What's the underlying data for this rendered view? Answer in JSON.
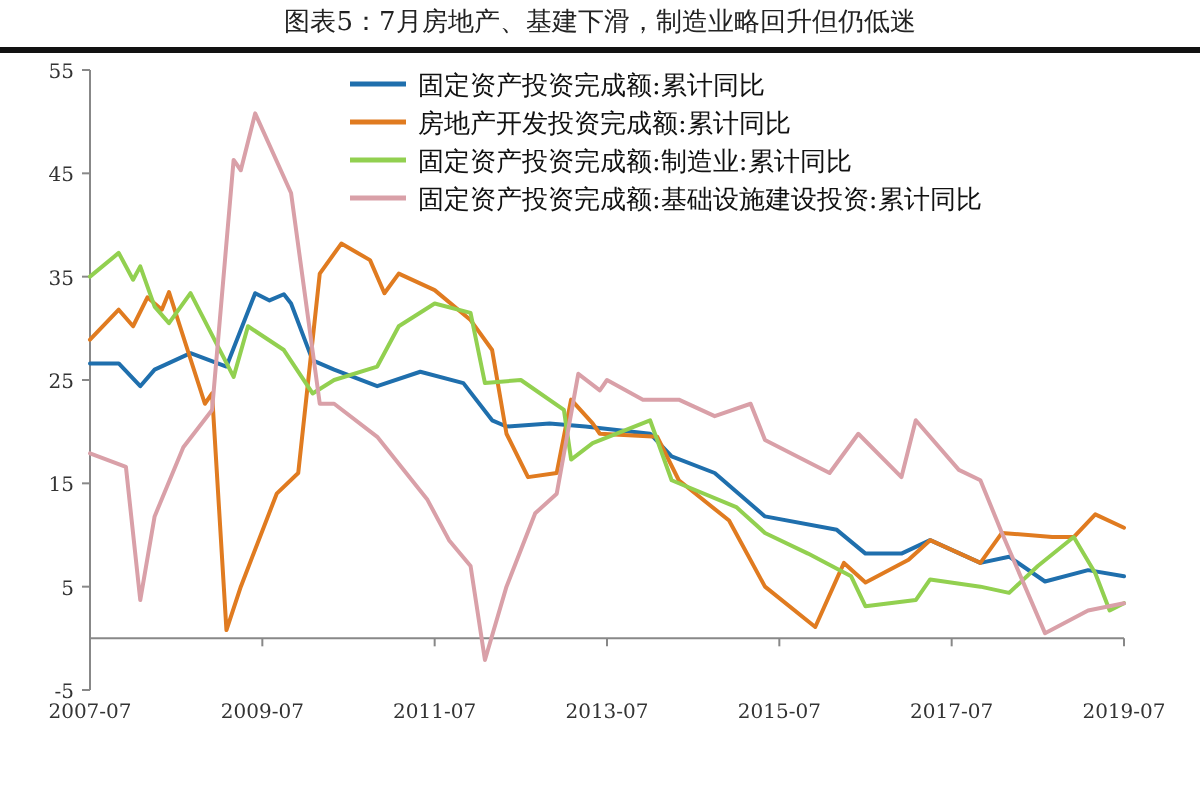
{
  "chart_data": {
    "type": "line",
    "title": "图表5：7月房地产、基建下滑，制造业略回升但仍低迷",
    "xlim": [
      "2007-07",
      "2019-07"
    ],
    "xticks": [
      "2007-07",
      "2009-07",
      "2011-07",
      "2013-07",
      "2015-07",
      "2017-07",
      "2019-07"
    ],
    "ylim": [
      -5,
      55
    ],
    "yticks": [
      -5,
      5,
      15,
      25,
      35,
      45,
      55
    ],
    "grid": false,
    "legend": "top right",
    "marker": "none",
    "line_style": "solid",
    "series": [
      {
        "name": "固定资产投资完成额:累计同比",
        "color": "#1f6fad",
        "x": [
          "2007-07",
          "2007-11",
          "2008-02",
          "2008-04",
          "2008-09",
          "2009-02",
          "2009-06",
          "2009-08",
          "2009-10",
          "2009-11",
          "2010-02",
          "2010-05",
          "2010-11",
          "2011-05",
          "2011-11",
          "2012-03",
          "2012-05",
          "2012-11",
          "2013-04",
          "2014-01",
          "2014-04",
          "2014-10",
          "2015-05",
          "2016-03",
          "2016-07",
          "2016-12",
          "2017-04",
          "2017-11",
          "2018-03",
          "2018-08",
          "2019-02",
          "2019-07"
        ],
        "values": [
          26.6,
          26.6,
          24.4,
          26,
          27.6,
          26.3,
          33.4,
          32.7,
          33.3,
          32.4,
          26.9,
          26,
          24.4,
          25.8,
          24.7,
          21.1,
          20.5,
          20.8,
          20.5,
          19.8,
          17.6,
          16,
          11.8,
          10.5,
          8.2,
          8.2,
          9.5,
          7.3,
          7.9,
          5.5,
          6.6,
          6.0
        ]
      },
      {
        "name": "房地产开发投资完成额:累计同比",
        "color": "#e07b20",
        "x": [
          "2007-07",
          "2007-11",
          "2008-01",
          "2008-03",
          "2008-05",
          "2008-06",
          "2008-11",
          "2008-12",
          "2009-02",
          "2009-04",
          "2009-09",
          "2009-12",
          "2010-03",
          "2010-06",
          "2010-10",
          "2010-12",
          "2011-02",
          "2011-07",
          "2011-12",
          "2012-03",
          "2012-05",
          "2012-08",
          "2012-12",
          "2013-02",
          "2013-05",
          "2013-06",
          "2014-02",
          "2014-05",
          "2014-12",
          "2015-05",
          "2015-12",
          "2016-04",
          "2016-07",
          "2017-01",
          "2017-04",
          "2017-11",
          "2018-02",
          "2018-09",
          "2018-12",
          "2019-03",
          "2019-07"
        ],
        "values": [
          28.9,
          31.8,
          30.2,
          33,
          31.8,
          33.5,
          22.7,
          23.7,
          0.8,
          5,
          14,
          16,
          35.3,
          38.2,
          36.6,
          33.4,
          35.3,
          33.7,
          30.8,
          27.9,
          19.8,
          15.6,
          16,
          23.1,
          20.8,
          19.8,
          19.5,
          15.3,
          11.4,
          5,
          1.1,
          7.3,
          5.4,
          7.6,
          9.5,
          7.3,
          10.2,
          9.8,
          9.8,
          12,
          10.7
        ]
      },
      {
        "name": "固定资产投资完成额:制造业:累计同比",
        "color": "#92d050",
        "x": [
          "2007-07",
          "2007-11",
          "2008-01",
          "2008-02",
          "2008-04",
          "2008-06",
          "2008-09",
          "2009-03",
          "2009-05",
          "2009-10",
          "2010-02",
          "2010-05",
          "2010-11",
          "2011-02",
          "2011-07",
          "2011-12",
          "2012-02",
          "2012-07",
          "2013-01",
          "2013-02",
          "2013-05",
          "2014-01",
          "2014-04",
          "2015-01",
          "2015-05",
          "2015-11",
          "2016-05",
          "2016-07",
          "2017-02",
          "2017-04",
          "2017-11",
          "2018-03",
          "2018-07",
          "2018-12",
          "2019-03",
          "2019-05",
          "2019-07"
        ],
        "values": [
          35,
          37.3,
          34.7,
          36,
          32.1,
          30.5,
          33.4,
          25.3,
          30.2,
          27.9,
          23.7,
          25,
          26.3,
          30.2,
          32.4,
          31.5,
          24.7,
          25,
          22.1,
          17.3,
          18.9,
          21.1,
          15.3,
          12.7,
          10.2,
          8.2,
          6,
          3.1,
          3.7,
          5.7,
          5,
          4.4,
          7,
          9.8,
          6.3,
          2.7,
          3.4
        ]
      },
      {
        "name": "固定资产投资完成额:基础设施建设投资:累计同比",
        "color": "#d9a0a8",
        "x": [
          "2007-07",
          "2007-12",
          "2008-02",
          "2008-04",
          "2008-08",
          "2008-12",
          "2009-03",
          "2009-04",
          "2009-06",
          "2009-11",
          "2010-03",
          "2010-05",
          "2010-11",
          "2011-06",
          "2011-09",
          "2011-12",
          "2012-02",
          "2012-05",
          "2012-09",
          "2012-12",
          "2013-03",
          "2013-06",
          "2013-07",
          "2013-12",
          "2014-05",
          "2014-10",
          "2015-03",
          "2015-05",
          "2016-02",
          "2016-06",
          "2016-12",
          "2017-02",
          "2017-08",
          "2017-11",
          "2018-02",
          "2018-08",
          "2019-02",
          "2019-07"
        ],
        "values": [
          17.9,
          16.6,
          3.7,
          11.8,
          18.5,
          22.1,
          46.3,
          45.3,
          50.8,
          43.1,
          22.7,
          22.7,
          19.5,
          13.4,
          9.5,
          7,
          -2.1,
          5,
          12.1,
          14,
          25.6,
          24,
          25,
          23.1,
          23.1,
          21.5,
          22.7,
          19.2,
          16,
          19.8,
          15.6,
          21.1,
          16.3,
          15.3,
          10.2,
          0.5,
          2.7,
          3.4
        ]
      }
    ]
  }
}
